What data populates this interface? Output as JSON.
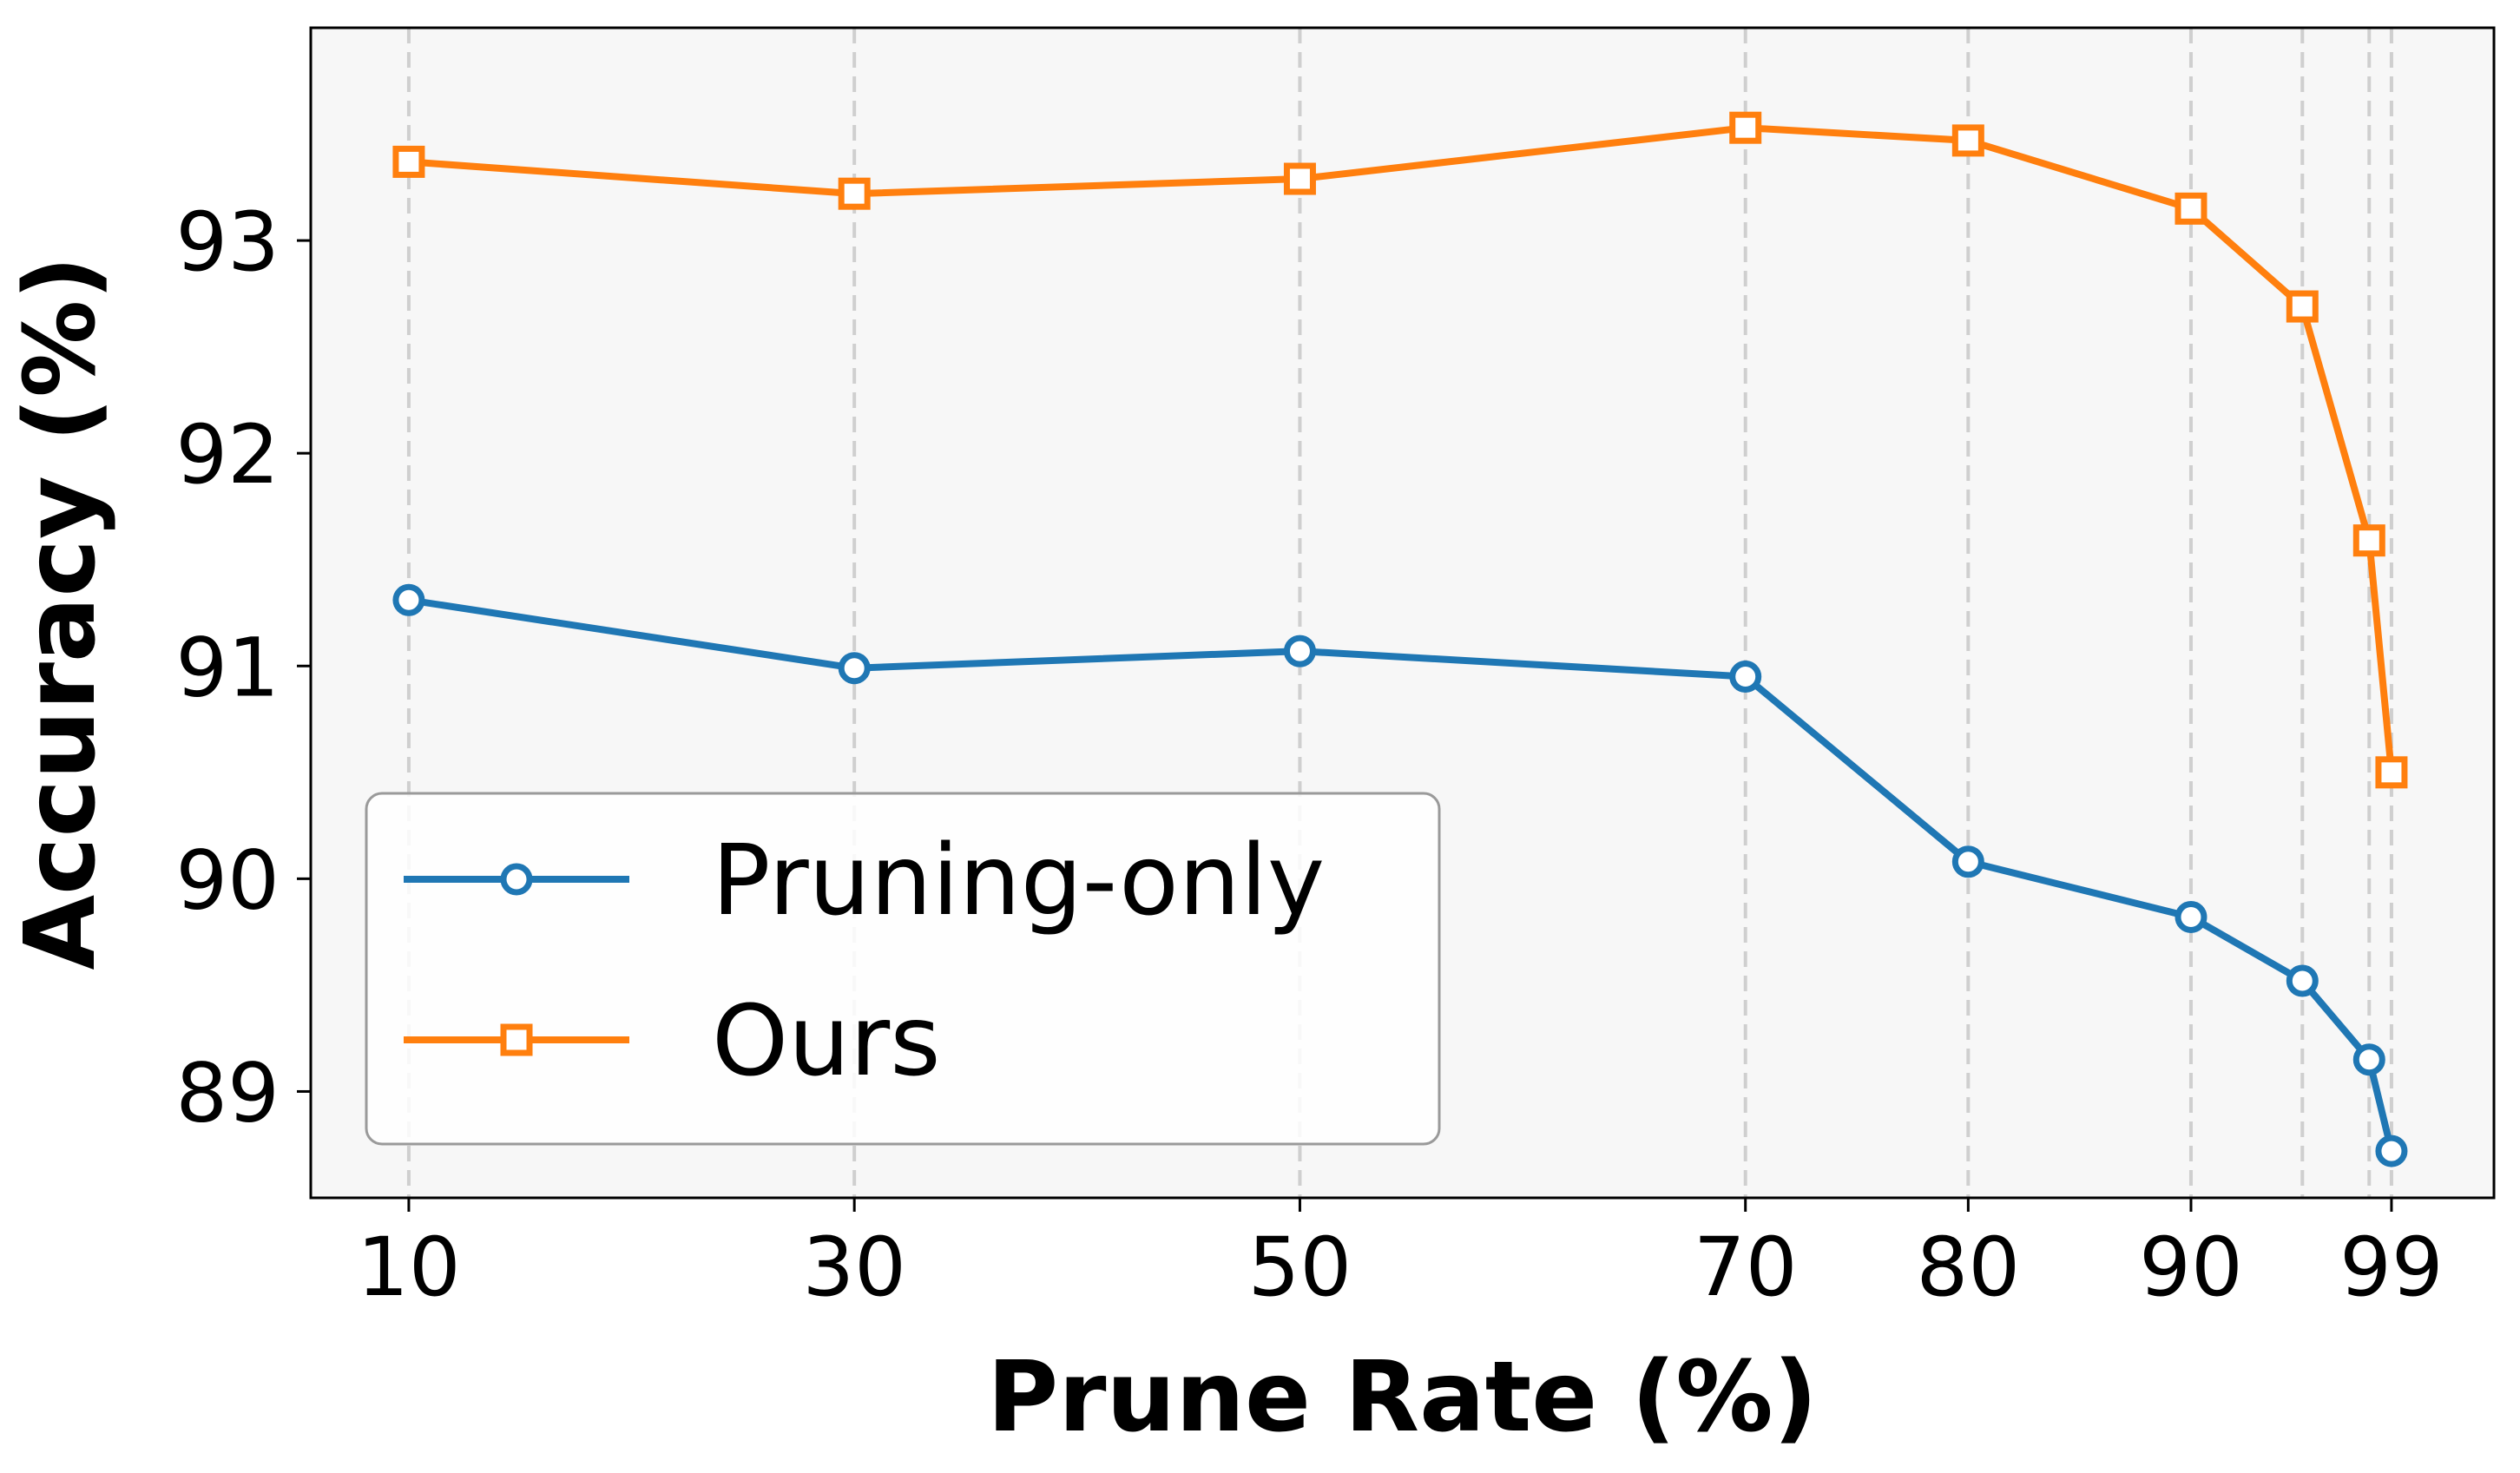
{
  "chart_data": {
    "type": "line",
    "xlabel": "Prune Rate (%)",
    "ylabel": "Accuracy (%)",
    "x": [
      10,
      30,
      50,
      70,
      80,
      90,
      95,
      98,
      99
    ],
    "xticks": [
      10,
      30,
      50,
      70,
      80,
      90,
      99
    ],
    "yticks": [
      89,
      90,
      91,
      92,
      93
    ],
    "xlim": [
      5.6,
      103.6
    ],
    "ylim": [
      88.5,
      94.0
    ],
    "grid": "vertical dashed at data x positions",
    "legend_position": "lower-left",
    "series": [
      {
        "name": "Pruning-only",
        "color": "#1f77b4",
        "marker": "circle",
        "values": [
          91.31,
          90.99,
          91.07,
          90.95,
          90.08,
          89.82,
          89.52,
          89.15,
          88.72
        ]
      },
      {
        "name": "Ours",
        "color": "#ff7f0e",
        "marker": "square",
        "values": [
          93.37,
          93.22,
          93.29,
          93.53,
          93.47,
          93.15,
          92.69,
          91.59,
          90.5
        ]
      }
    ]
  }
}
